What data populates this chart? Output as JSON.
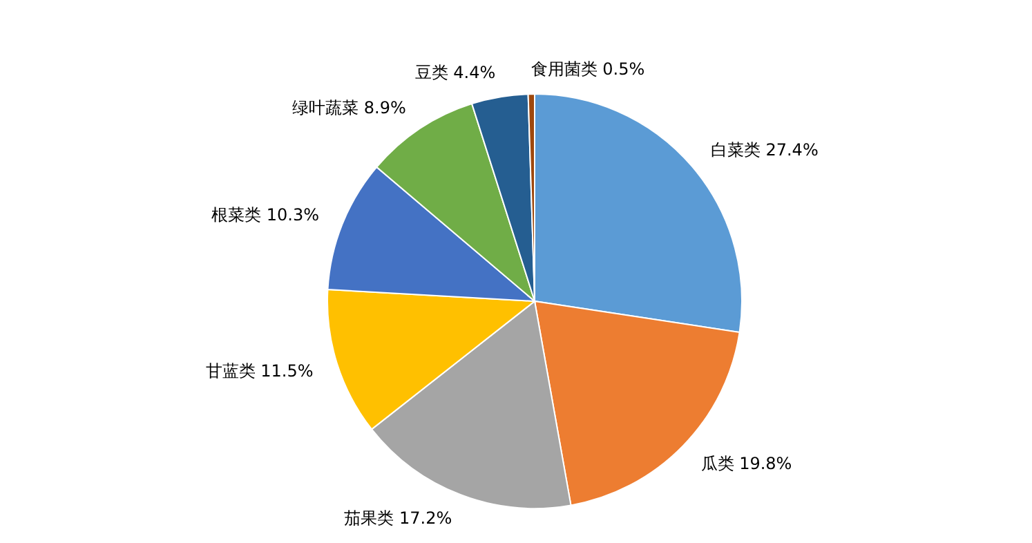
{
  "chart_data": {
    "type": "pie",
    "categories": [
      "白菜类",
      "瓜类",
      "茄果类",
      "甘蓝类",
      "根菜类",
      "绿叶蔬菜",
      "豆类",
      "食用菌类"
    ],
    "values": [
      27.4,
      19.8,
      17.2,
      11.5,
      10.3,
      8.9,
      4.4,
      0.5
    ],
    "value_labels": [
      "27.4%",
      "19.8%",
      "17.2%",
      "11.5%",
      "10.3%",
      "8.9%",
      "4.4%",
      "0.5%"
    ],
    "colors": [
      "#5b9bd5",
      "#ed7d31",
      "#a5a5a5",
      "#ffc000",
      "#4472c4",
      "#70ad47",
      "#255e91",
      "#9e480e"
    ]
  }
}
